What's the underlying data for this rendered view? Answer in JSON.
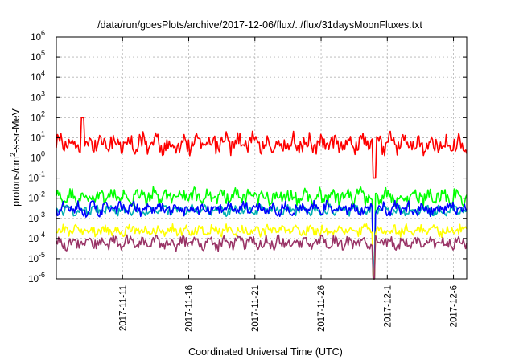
{
  "chart_data": {
    "type": "line",
    "title": "/data/run/goesPlots/archive/2017-12-06/flux/../flux/31daysMoonFluxes.txt",
    "xlabel": "Coordinated Universal Time (UTC)",
    "ylabel_main": "protons/cm",
    "ylabel_sup": "2",
    "ylabel_rest": "-s-sr-MeV",
    "y_scale": "log",
    "ylim": [
      1e-06,
      1000000.0
    ],
    "y_ticks": [
      {
        "base": "10",
        "exp": "-6"
      },
      {
        "base": "10",
        "exp": "-5"
      },
      {
        "base": "10",
        "exp": "-4"
      },
      {
        "base": "10",
        "exp": "-3"
      },
      {
        "base": "10",
        "exp": "-2"
      },
      {
        "base": "10",
        "exp": "-1"
      },
      {
        "base": "10",
        "exp": "0"
      },
      {
        "base": "10",
        "exp": "1"
      },
      {
        "base": "10",
        "exp": "2"
      },
      {
        "base": "10",
        "exp": "3"
      },
      {
        "base": "10",
        "exp": "4"
      },
      {
        "base": "10",
        "exp": "5"
      },
      {
        "base": "10",
        "exp": "6"
      }
    ],
    "xlim": [
      "2017-11-06",
      "2017-12-07"
    ],
    "x_ticks": [
      "2017-11-11",
      "2017-11-16",
      "2017-11-21",
      "2017-11-26",
      "2017-12-1",
      "2017-12-6"
    ],
    "grid": true,
    "series": [
      {
        "color": "#ff0000",
        "level": 5.0,
        "log_spread": 0.45,
        "spikes": [
          [
            "2017-11-08",
            100
          ],
          [
            "2017-11-30",
            0.1
          ]
        ]
      },
      {
        "color": "#00ff00",
        "level": 0.012,
        "log_spread": 0.35,
        "dropout": "2017-11-30"
      },
      {
        "color": "#00b0b0",
        "level": 0.0025,
        "log_spread": 0.22,
        "dropout": "2017-11-30"
      },
      {
        "color": "#0000ff",
        "level": 0.003,
        "log_spread": 0.3,
        "dropout": "2017-11-30"
      },
      {
        "color": "#ffff00",
        "level": 0.00025,
        "log_spread": 0.25,
        "dropout": "2017-11-30"
      },
      {
        "color": "#993366",
        "level": 6e-05,
        "log_spread": 0.3,
        "dropout": "2017-11-30"
      }
    ]
  }
}
